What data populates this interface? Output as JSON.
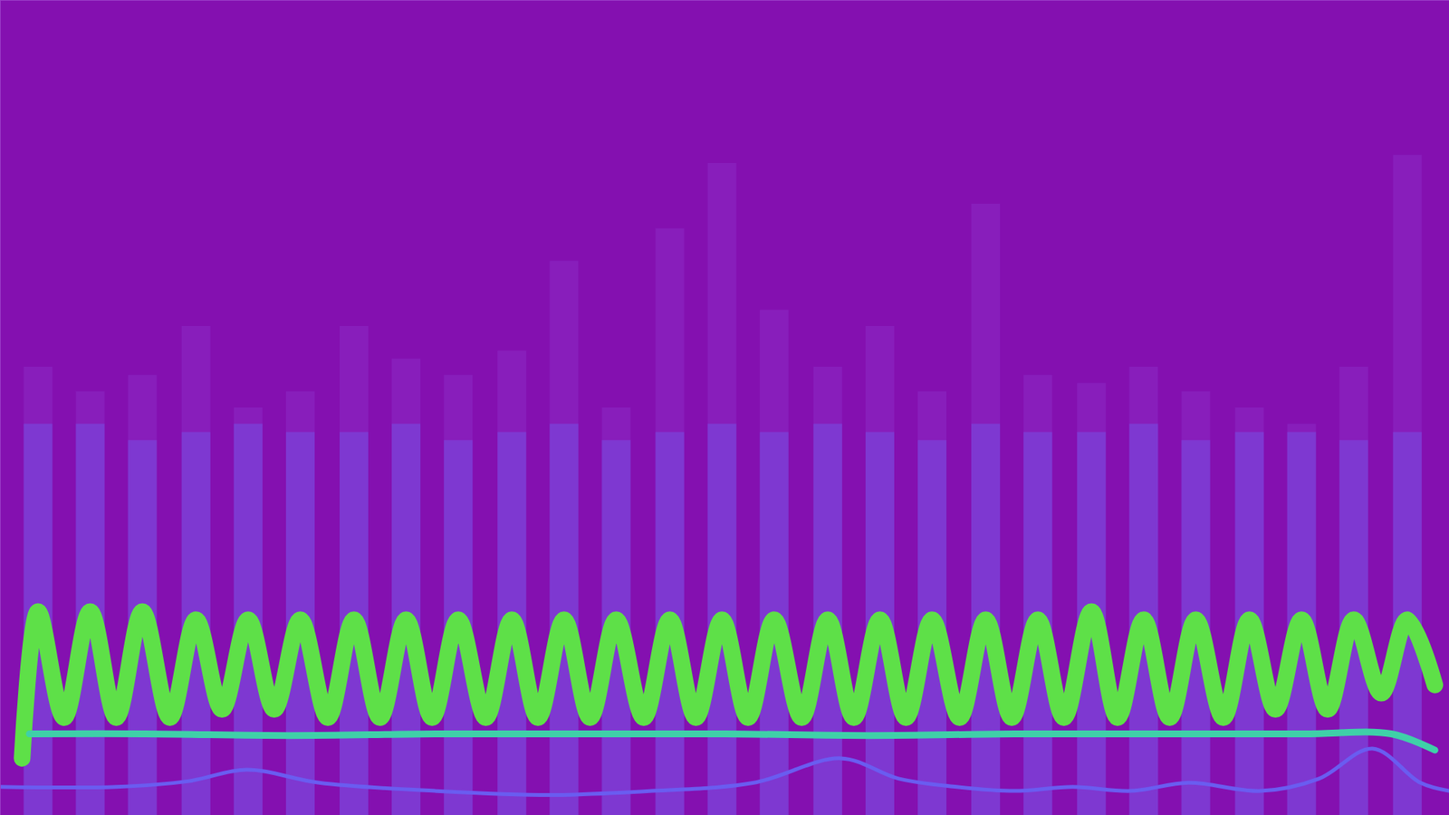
{
  "chart_data": {
    "type": "line",
    "xlim": [
      0,
      100
    ],
    "ylim": [
      0,
      100
    ],
    "tick_labels": false,
    "series": [
      {
        "type": "bar",
        "color": "#8d2ac4",
        "x": [
          2.6,
          6.2,
          9.8,
          13.5,
          17.1,
          20.7,
          24.4,
          28.0,
          31.6,
          35.3,
          38.9,
          42.5,
          46.2,
          49.8,
          53.4,
          57.1,
          60.7,
          64.3,
          68.0,
          71.6,
          75.3,
          78.9,
          82.5,
          86.2,
          89.8,
          93.4,
          97.1
        ],
        "values": [
          55,
          52,
          54,
          60,
          50,
          52,
          60,
          56,
          54,
          57,
          68,
          50,
          72,
          80,
          62,
          55,
          60,
          52,
          75,
          54,
          53,
          55,
          52,
          50,
          48,
          55,
          81
        ]
      },
      {
        "type": "bar",
        "color": "#7b42d8",
        "x": [
          2.6,
          6.2,
          9.8,
          13.5,
          17.1,
          20.7,
          24.4,
          28.0,
          31.6,
          35.3,
          38.9,
          42.5,
          46.2,
          49.8,
          53.4,
          57.1,
          60.7,
          64.3,
          68.0,
          71.6,
          75.3,
          78.9,
          82.5,
          86.2,
          89.8,
          93.4,
          97.1
        ],
        "values": [
          48,
          48,
          46,
          47,
          48,
          47,
          47,
          48,
          46,
          47,
          48,
          46,
          47,
          48,
          47,
          48,
          47,
          46,
          48,
          47,
          47,
          48,
          46,
          47,
          47,
          46,
          47
        ]
      },
      {
        "type": "line",
        "color": "#5ee048",
        "x": [
          1.5,
          2.6,
          4.4,
          6.2,
          8.0,
          9.8,
          11.7,
          13.5,
          15.3,
          17.1,
          18.9,
          20.7,
          22.6,
          24.4,
          26.2,
          28.0,
          29.8,
          31.6,
          33.5,
          35.3,
          37.1,
          38.9,
          40.7,
          42.5,
          44.4,
          46.2,
          48.0,
          49.8,
          51.6,
          53.4,
          55.3,
          57.1,
          58.9,
          60.7,
          62.5,
          64.3,
          66.2,
          68.0,
          69.8,
          71.6,
          73.4,
          75.3,
          77.1,
          78.9,
          80.7,
          82.5,
          84.4,
          86.2,
          88.0,
          89.8,
          91.6,
          93.4,
          95.3,
          97.1,
          99.0
        ],
        "values": [
          7,
          25,
          12,
          25,
          12,
          25,
          12,
          24,
          13,
          24,
          13,
          24,
          12,
          24,
          12,
          24,
          12,
          24,
          12,
          24,
          12,
          24,
          12,
          24,
          12,
          24,
          12,
          24,
          12,
          24,
          12,
          24,
          12,
          24,
          12,
          24,
          12,
          24,
          12,
          24,
          12,
          25,
          12,
          24,
          12,
          24,
          12,
          24,
          13,
          24,
          13,
          24,
          15,
          24,
          16
        ]
      },
      {
        "type": "line",
        "color": "#3fd0a8",
        "x": [
          2,
          10,
          20,
          30,
          40,
          50,
          60,
          70,
          80,
          90,
          96,
          99
        ],
        "values": [
          10,
          10,
          9.8,
          10,
          10,
          10,
          9.8,
          10,
          10,
          10,
          10,
          8
        ]
      },
      {
        "type": "line",
        "color": "#6a5cf0",
        "x": [
          0,
          8,
          13,
          17,
          22,
          30,
          38,
          45,
          52,
          58,
          62,
          66,
          70,
          74,
          78,
          82,
          87,
          91,
          94.7,
          98,
          100
        ],
        "values": [
          3.5,
          3.5,
          4.2,
          5.6,
          4.0,
          3.0,
          2.5,
          3.0,
          4.0,
          7.0,
          4.5,
          3.5,
          3.0,
          3.5,
          3.0,
          4.0,
          3.0,
          4.5,
          8.2,
          4.0,
          3.0
        ]
      }
    ]
  }
}
